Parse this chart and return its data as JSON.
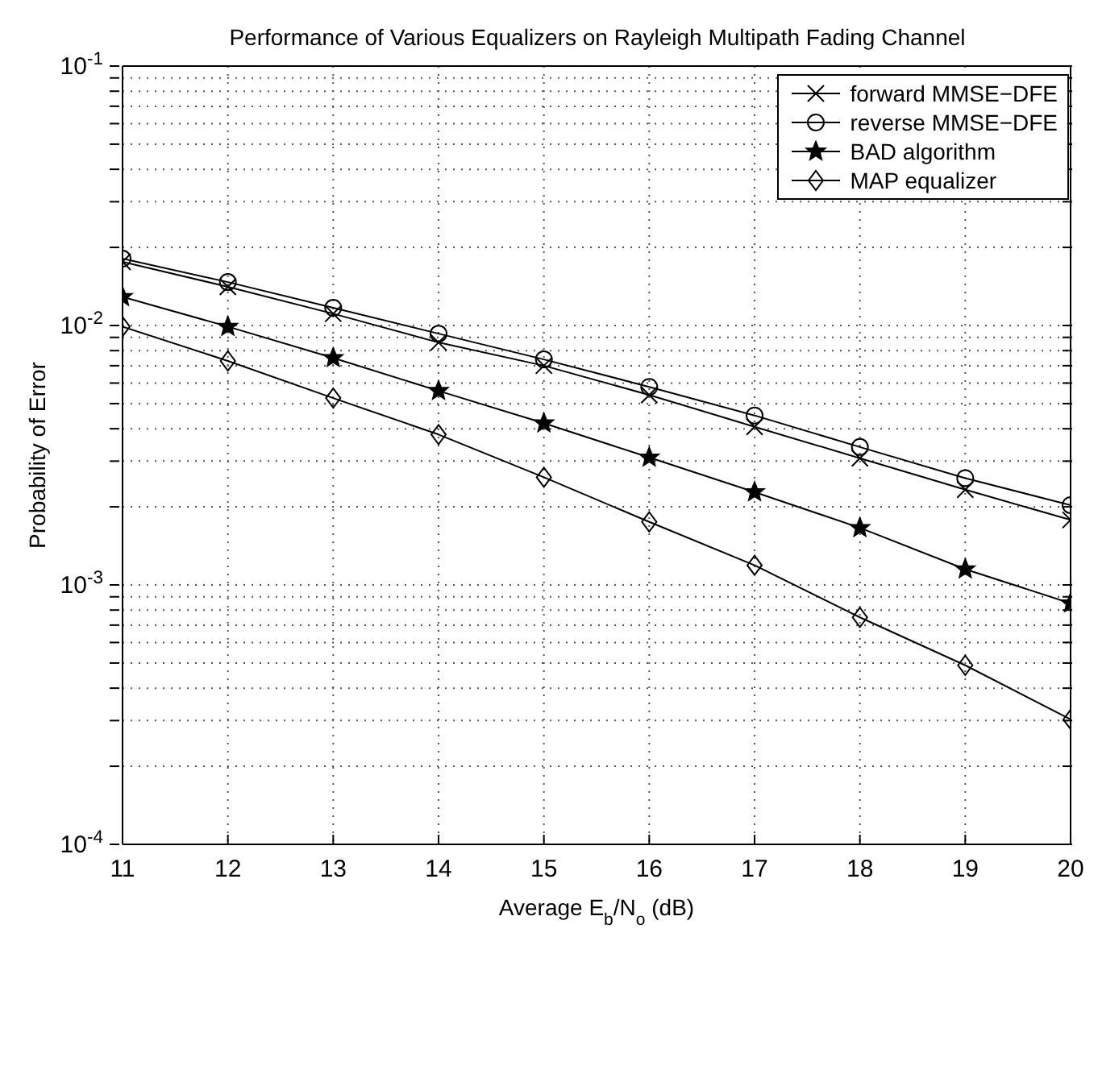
{
  "chart_data": {
    "type": "line",
    "title": "Performance of Various Equalizers on Rayleigh Multipath Fading Channel",
    "xlabel": "Average E$_{b}$/N$_{o}$ (dB)",
    "ylabel": "Probability of Error",
    "x": [
      11,
      12,
      13,
      14,
      15,
      16,
      17,
      18,
      19,
      20
    ],
    "series": [
      {
        "name": "forward MMSE−DFE",
        "color": "#000000",
        "marker": "cross",
        "values": [
          0.0176,
          0.0141,
          0.0111,
          0.0086,
          0.007,
          0.0054,
          0.00407,
          0.00308,
          0.00233,
          0.00178
        ]
      },
      {
        "name": "reverse MMSE−DFE",
        "color": "#000000",
        "marker": "circle",
        "values": [
          0.0181,
          0.0147,
          0.0117,
          0.0093,
          0.0074,
          0.0058,
          0.0045,
          0.0034,
          0.00258,
          0.00203
        ]
      },
      {
        "name": "BAD algorithm",
        "color": "#000000",
        "marker": "star",
        "values": [
          0.0129,
          0.0099,
          0.0075,
          0.0056,
          0.0042,
          0.0031,
          0.00228,
          0.00166,
          0.00115,
          0.00085
        ]
      },
      {
        "name": "MAP equalizer",
        "color": "#000000",
        "marker": "diamond",
        "values": [
          0.0099,
          0.0073,
          0.00525,
          0.0038,
          0.0026,
          0.00175,
          0.00119,
          0.00075,
          0.00049,
          0.000303
        ]
      }
    ],
    "xlim": [
      11,
      20
    ],
    "xticks": [
      11,
      12,
      13,
      14,
      15,
      16,
      17,
      18,
      19,
      20
    ],
    "ylim": [
      0.0001,
      0.1
    ],
    "yticks": [
      {
        "value": 0.0001,
        "label": "10$^{-4}$"
      },
      {
        "value": 0.0002,
        "label": null
      },
      {
        "value": 0.0003,
        "label": null
      },
      {
        "value": 0.0004,
        "label": null
      },
      {
        "value": 0.0005,
        "label": null
      },
      {
        "value": 0.0006,
        "label": null
      },
      {
        "value": 0.0007,
        "label": null
      },
      {
        "value": 0.0008,
        "label": null
      },
      {
        "value": 0.0009,
        "label": null
      },
      {
        "value": 0.001,
        "label": "10$^{-3}$"
      },
      {
        "value": 0.002,
        "label": null
      },
      {
        "value": 0.003,
        "label": null
      },
      {
        "value": 0.004,
        "label": null
      },
      {
        "value": 0.005,
        "label": null
      },
      {
        "value": 0.006,
        "label": null
      },
      {
        "value": 0.007,
        "label": null
      },
      {
        "value": 0.008,
        "label": null
      },
      {
        "value": 0.009,
        "label": null
      },
      {
        "value": 0.01,
        "label": "10$^{-2}$"
      },
      {
        "value": 0.02,
        "label": null
      },
      {
        "value": 0.03,
        "label": null
      },
      {
        "value": 0.04,
        "label": null
      },
      {
        "value": 0.05,
        "label": null
      },
      {
        "value": 0.06,
        "label": null
      },
      {
        "value": 0.07,
        "label": null
      },
      {
        "value": 0.08,
        "label": null
      },
      {
        "value": 0.09,
        "label": null
      },
      {
        "value": 0.1,
        "label": "10$^{-1}$"
      }
    ],
    "log": "y",
    "grid": true,
    "legend": "top right",
    "line_style": "solid"
  }
}
